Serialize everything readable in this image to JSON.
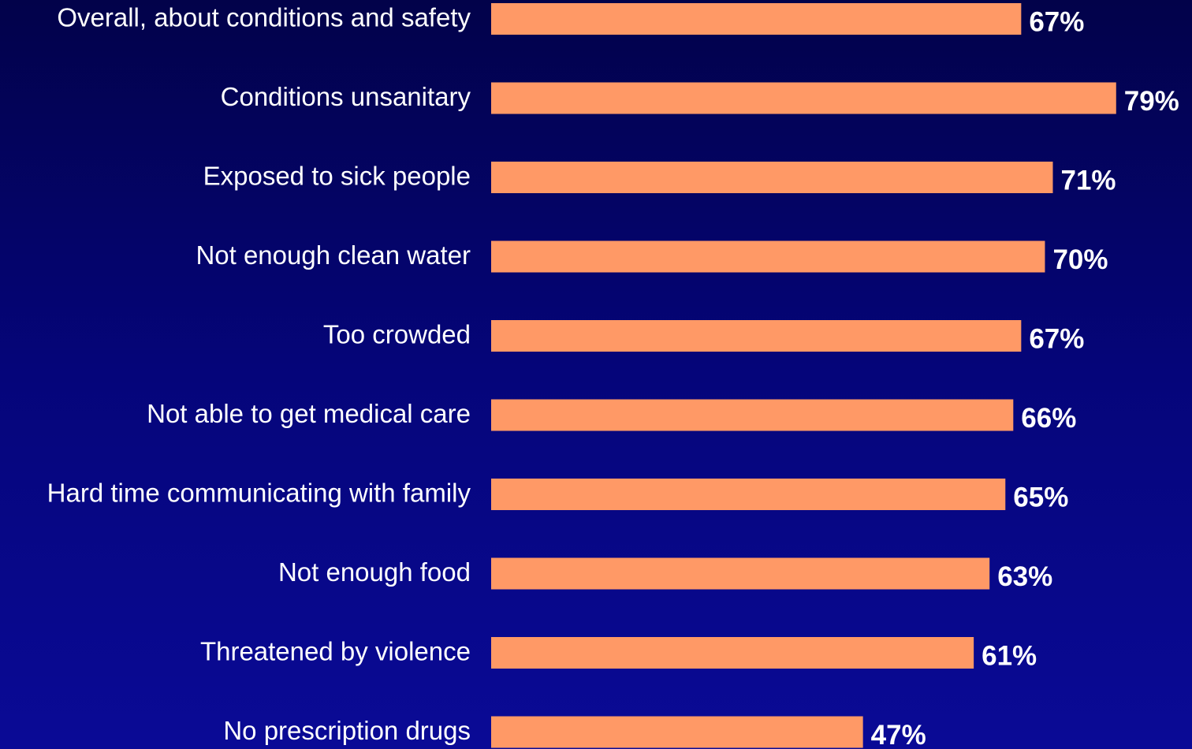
{
  "colors": {
    "background_top": "#02024a",
    "background_bottom": "#0a0a96",
    "bar": "#ff9966",
    "text": "#ffffff"
  },
  "chart_data": {
    "type": "bar",
    "orientation": "horizontal",
    "categories": [
      "Overall, about conditions and safety",
      "Conditions unsanitary",
      "Exposed to sick people",
      "Not enough clean water",
      "Too crowded",
      "Not able to get medical care",
      "Hard time communicating with family",
      "Not enough food",
      "Threatened by violence",
      "No prescription drugs"
    ],
    "values": [
      67,
      79,
      71,
      70,
      67,
      66,
      65,
      63,
      61,
      47
    ],
    "value_labels": [
      "67%",
      "79%",
      "71%",
      "70%",
      "67%",
      "66%",
      "65%",
      "63%",
      "61%",
      "47%"
    ],
    "unit": "%",
    "xlim": [
      0,
      79
    ],
    "grid": false,
    "legend": "none"
  }
}
